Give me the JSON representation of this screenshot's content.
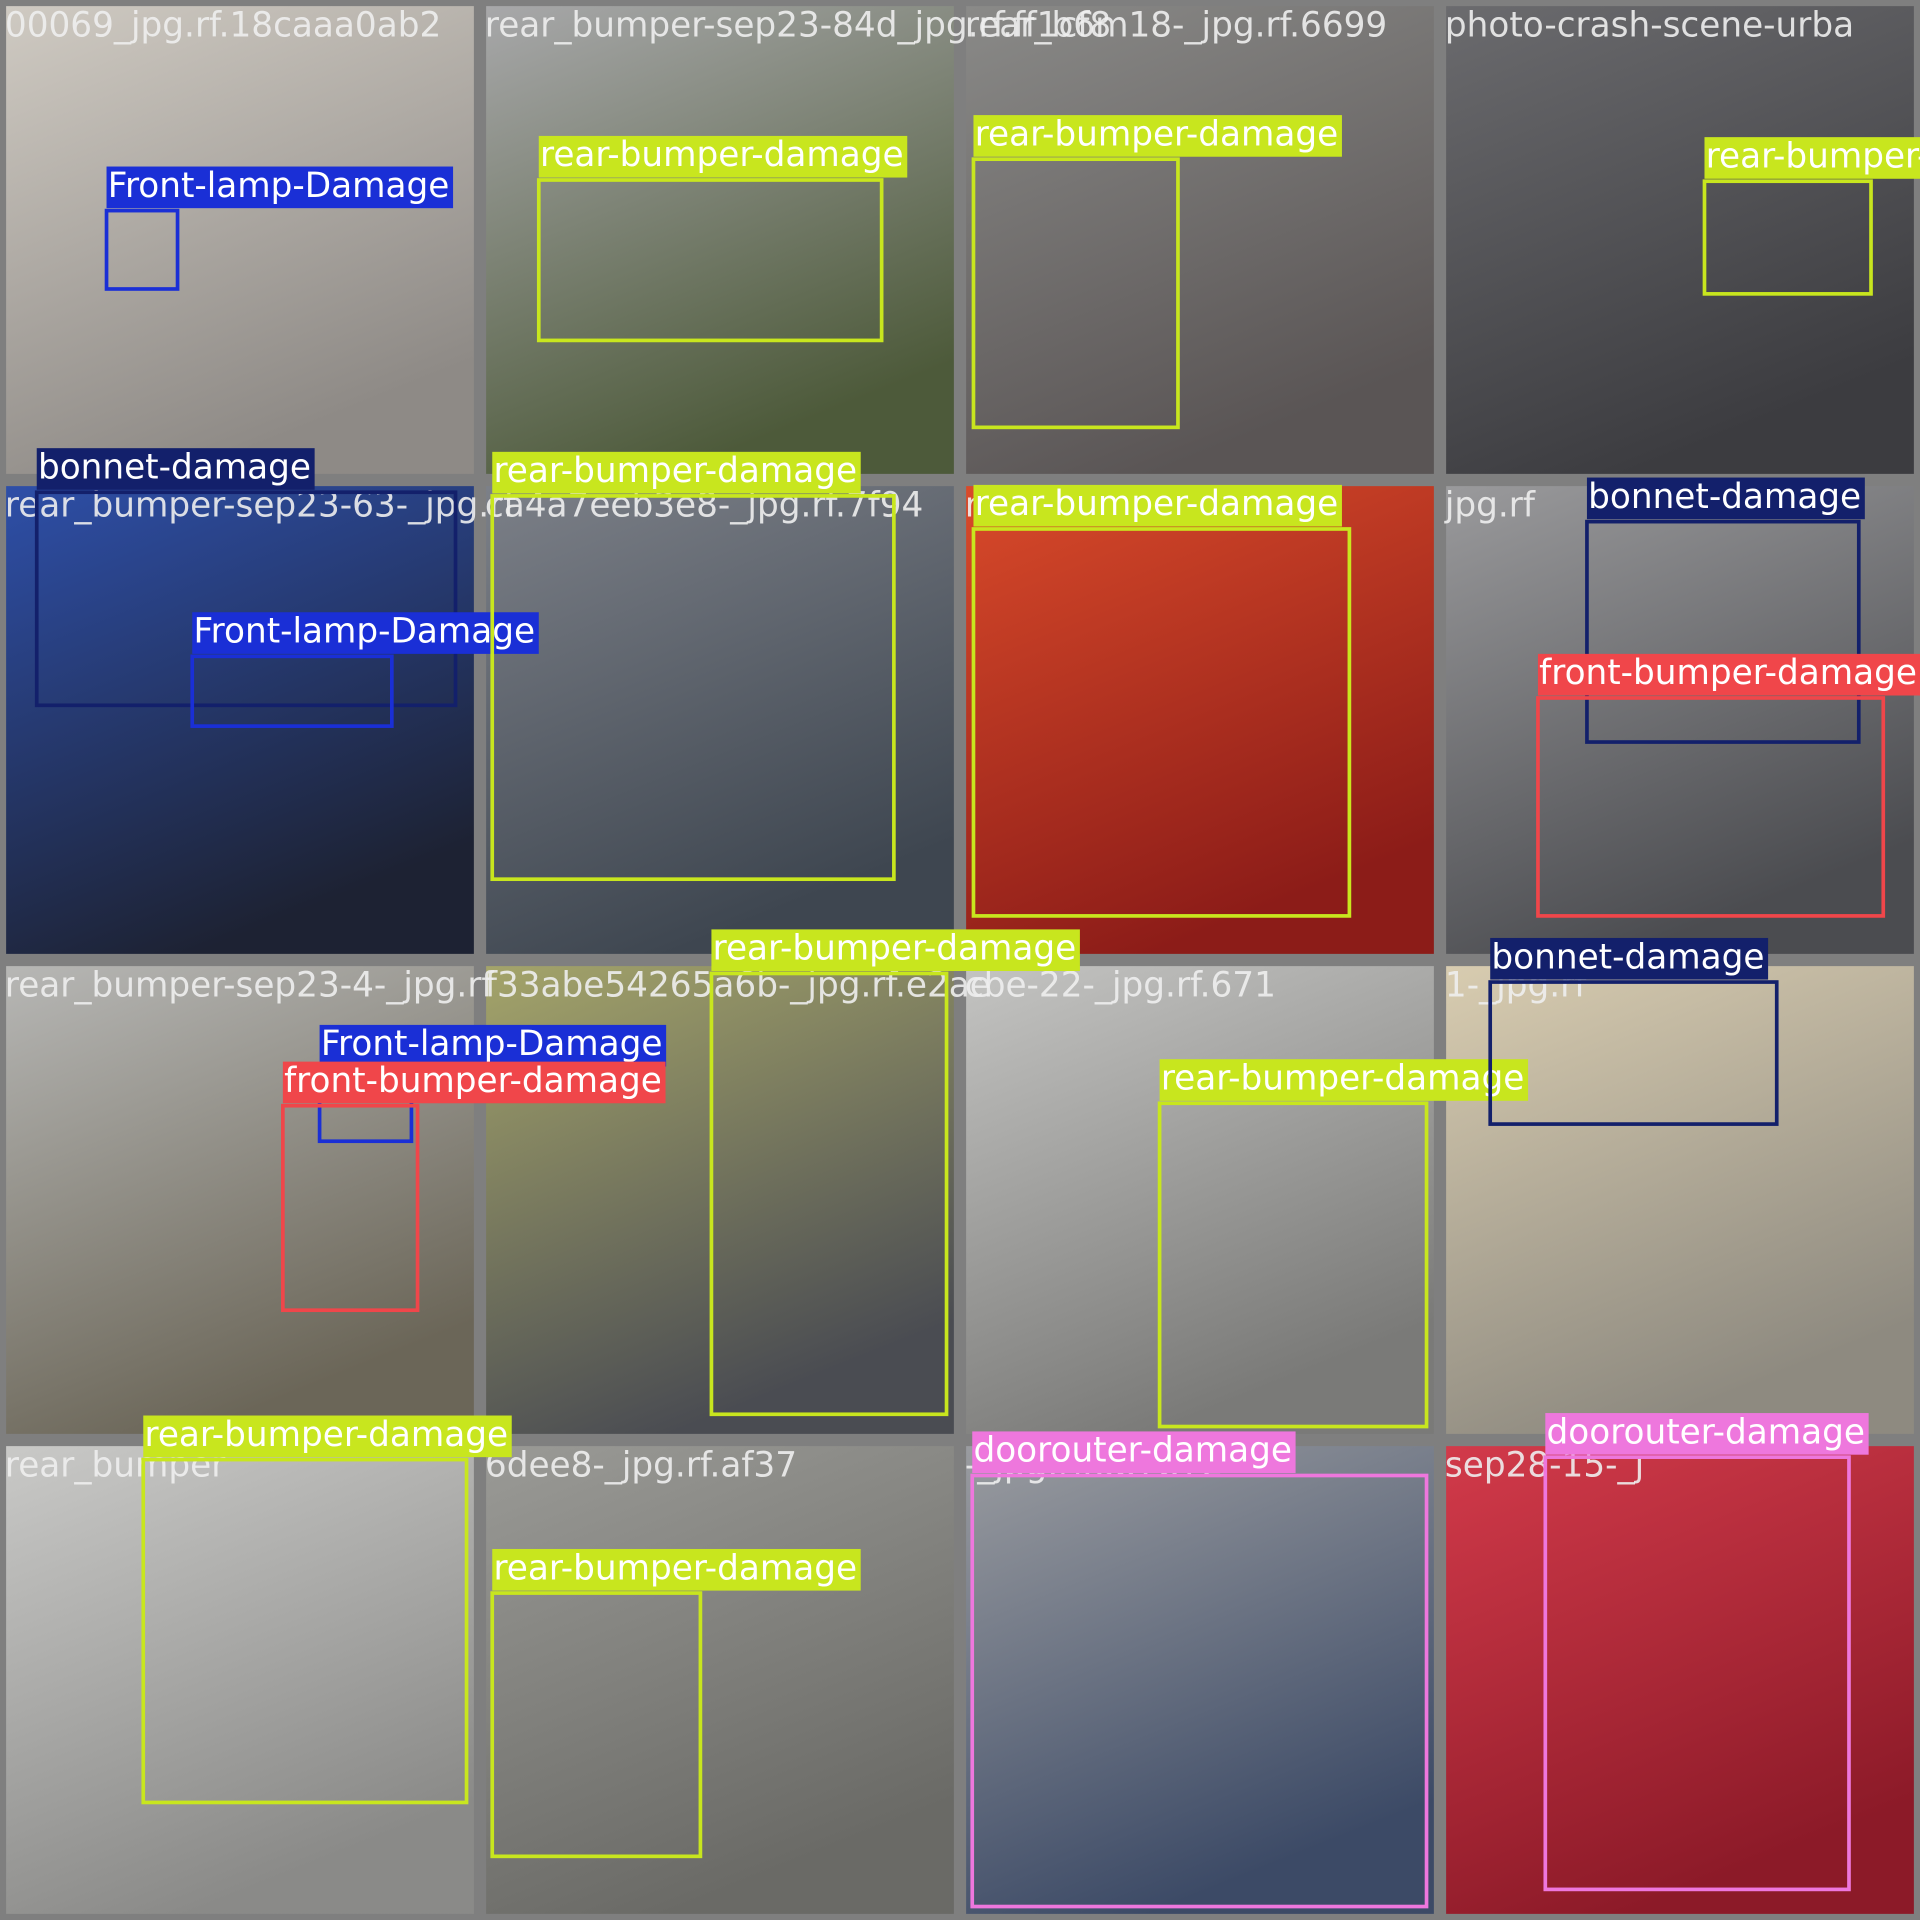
{
  "tiles": [
    {
      "filename": "00069_jpg.rf.18caaa0ab2",
      "boxes": [
        {
          "label": "Front-lamp-Damage",
          "color": "#1a2fd6"
        }
      ]
    },
    {
      "filename": "rear_bumper-sep23-84d_jpg.rf.ff1cf8",
      "boxes": [
        {
          "label": "rear-bumper-damage",
          "color": "#c8e61e"
        }
      ]
    },
    {
      "filename": "rear_b6m18-_jpg.rf.6699",
      "boxes": [
        {
          "label": "rear-bumper-damage",
          "color": "#c8e61e"
        }
      ]
    },
    {
      "filename": "photo-crash-scene-urba",
      "boxes": [
        {
          "label": "rear-bumper-damage",
          "color": "#c8e61e"
        }
      ]
    },
    {
      "filename": "rear_bumper-sep23-63-_jpg.rf",
      "boxes": [
        {
          "label": "bonnet-damage",
          "color": "#13206b"
        },
        {
          "label": "Front-lamp-Damage",
          "color": "#1a2fd6"
        }
      ]
    },
    {
      "filename": "ca4a7eeb3e8-_jpg.rf.7f94",
      "boxes": [
        {
          "label": "rear-bumper-damage",
          "color": "#c8e61e"
        }
      ]
    },
    {
      "filename": "rf.505e",
      "boxes": [
        {
          "label": "rear-bumper-damage",
          "color": "#c8e61e"
        }
      ]
    },
    {
      "filename": "jpg.rf",
      "boxes": [
        {
          "label": "bonnet-damage",
          "color": "#13206b"
        },
        {
          "label": "front-bumper-damage",
          "color": "#f0464a"
        }
      ]
    },
    {
      "filename": "rear_bumper-sep23-4-_jpg.rf",
      "boxes": [
        {
          "label": "Front-lamp-Damage",
          "color": "#1a2fd6"
        },
        {
          "label": "front-bumper-damage",
          "color": "#f0464a"
        }
      ]
    },
    {
      "filename": "f33abe54265a6b-_jpg.rf.e2ae",
      "boxes": [
        {
          "label": "rear-bumper-damage",
          "color": "#c8e61e"
        }
      ]
    },
    {
      "filename": "cbe-22-_jpg.rf.671",
      "boxes": [
        {
          "label": "rear-bumper-damage",
          "color": "#c8e61e"
        }
      ]
    },
    {
      "filename": "1-_jpg.rf",
      "boxes": [
        {
          "label": "bonnet-damage",
          "color": "#13206b"
        }
      ]
    },
    {
      "filename": "rear_bumper",
      "boxes": [
        {
          "label": "rear-bumper-damage",
          "color": "#c8e61e"
        }
      ]
    },
    {
      "filename": "6dee8-_jpg.rf.af37",
      "boxes": [
        {
          "label": "rear-bumper-damage",
          "color": "#c8e61e"
        }
      ]
    },
    {
      "filename": "-_jpg.rf.6b7b72",
      "boxes": [
        {
          "label": "doorouter-damage",
          "color": "#ee77dd"
        }
      ]
    },
    {
      "filename": "sep28-15-_j",
      "boxes": [
        {
          "label": "doorouter-damage",
          "color": "#ee77dd"
        }
      ]
    }
  ]
}
